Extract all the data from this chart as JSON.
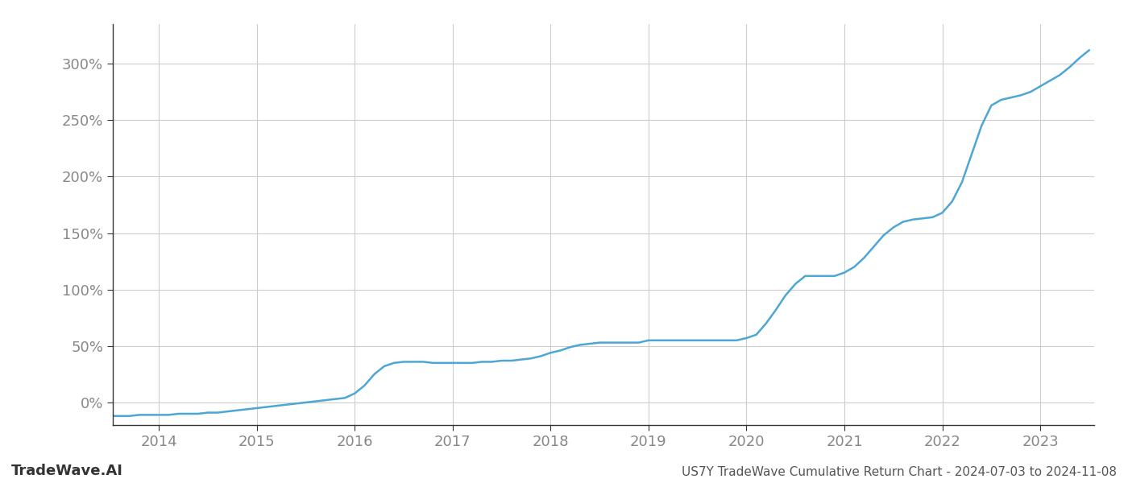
{
  "title": "US7Y TradeWave Cumulative Return Chart - 2024-07-03 to 2024-11-08",
  "watermark": "TradeWave.AI",
  "line_color": "#4da6d4",
  "line_width": 1.8,
  "background_color": "#ffffff",
  "grid_color": "#cccccc",
  "x_years": [
    2014,
    2015,
    2016,
    2017,
    2018,
    2019,
    2020,
    2021,
    2022,
    2023
  ],
  "x_data": [
    2013.53,
    2013.6,
    2013.7,
    2013.8,
    2013.9,
    2014.0,
    2014.1,
    2014.2,
    2014.3,
    2014.4,
    2014.5,
    2014.6,
    2014.7,
    2014.8,
    2014.9,
    2015.0,
    2015.1,
    2015.2,
    2015.3,
    2015.4,
    2015.5,
    2015.6,
    2015.7,
    2015.8,
    2015.9,
    2016.0,
    2016.1,
    2016.2,
    2016.3,
    2016.4,
    2016.5,
    2016.6,
    2016.7,
    2016.8,
    2016.9,
    2017.0,
    2017.1,
    2017.2,
    2017.3,
    2017.4,
    2017.5,
    2017.6,
    2017.7,
    2017.8,
    2017.9,
    2018.0,
    2018.1,
    2018.2,
    2018.3,
    2018.4,
    2018.5,
    2018.6,
    2018.7,
    2018.8,
    2018.9,
    2019.0,
    2019.1,
    2019.2,
    2019.3,
    2019.4,
    2019.5,
    2019.6,
    2019.7,
    2019.8,
    2019.9,
    2020.0,
    2020.1,
    2020.2,
    2020.3,
    2020.4,
    2020.5,
    2020.6,
    2020.7,
    2020.8,
    2020.9,
    2021.0,
    2021.1,
    2021.2,
    2021.3,
    2021.4,
    2021.5,
    2021.6,
    2021.7,
    2021.8,
    2021.9,
    2022.0,
    2022.1,
    2022.2,
    2022.3,
    2022.4,
    2022.5,
    2022.6,
    2022.7,
    2022.8,
    2022.9,
    2023.0,
    2023.1,
    2023.2,
    2023.3,
    2023.4,
    2023.5
  ],
  "y_data": [
    -12,
    -12,
    -12,
    -11,
    -11,
    -11,
    -11,
    -10,
    -10,
    -10,
    -9,
    -9,
    -8,
    -7,
    -6,
    -5,
    -4,
    -3,
    -2,
    -1,
    0,
    1,
    2,
    3,
    4,
    8,
    15,
    25,
    32,
    35,
    36,
    36,
    36,
    35,
    35,
    35,
    35,
    35,
    36,
    36,
    37,
    37,
    38,
    39,
    41,
    44,
    46,
    49,
    51,
    52,
    53,
    53,
    53,
    53,
    53,
    55,
    55,
    55,
    55,
    55,
    55,
    55,
    55,
    55,
    55,
    57,
    60,
    70,
    82,
    95,
    105,
    112,
    112,
    112,
    112,
    115,
    120,
    128,
    138,
    148,
    155,
    160,
    162,
    163,
    164,
    168,
    178,
    195,
    220,
    245,
    263,
    268,
    270,
    272,
    275,
    280,
    285,
    290,
    297,
    305,
    312
  ],
  "yticks": [
    0,
    50,
    100,
    150,
    200,
    250,
    300
  ],
  "ytick_labels": [
    "0%",
    "50%",
    "100%",
    "150%",
    "200%",
    "250%",
    "300%"
  ],
  "ylim": [
    -20,
    335
  ],
  "xlim": [
    2013.53,
    2023.55
  ],
  "tick_fontsize": 13,
  "footer_fontsize": 11,
  "watermark_fontsize": 13
}
